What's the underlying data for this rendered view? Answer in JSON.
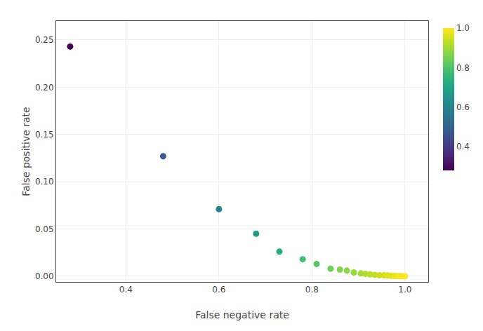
{
  "chart_data": {
    "type": "scatter",
    "xlabel": "False negative rate",
    "ylabel": "False positive rate",
    "x": [
      0.28,
      0.48,
      0.6,
      0.68,
      0.73,
      0.78,
      0.81,
      0.84,
      0.86,
      0.875,
      0.89,
      0.905,
      0.915,
      0.925,
      0.935,
      0.945,
      0.955,
      0.963,
      0.97,
      0.977,
      0.983,
      0.988,
      0.992,
      0.996,
      1.0
    ],
    "values": [
      0.243,
      0.127,
      0.071,
      0.045,
      0.026,
      0.018,
      0.013,
      0.008,
      0.007,
      0.006,
      0.004,
      0.003,
      0.0025,
      0.002,
      0.0015,
      0.001,
      0.001,
      0.0008,
      0.0005,
      0.0003,
      0.0002,
      0.0001,
      0.0001,
      0.0,
      0.0
    ],
    "color_values": [
      0.28,
      0.48,
      0.6,
      0.68,
      0.73,
      0.78,
      0.81,
      0.84,
      0.86,
      0.875,
      0.89,
      0.905,
      0.915,
      0.925,
      0.935,
      0.945,
      0.955,
      0.963,
      0.97,
      0.977,
      0.983,
      0.988,
      0.992,
      0.996,
      1.0
    ],
    "color_range": [
      0.28,
      1.0
    ],
    "color_ticks": [
      0.4,
      0.6,
      0.8,
      {
        "value": 1.0,
        "label": "1.0"
      }
    ],
    "xlim": [
      0.25,
      1.05
    ],
    "xticks": [
      0.4,
      0.6,
      0.8,
      {
        "value": 1.0,
        "label": "1.0"
      }
    ],
    "ylim": [
      -0.006,
      0.27
    ],
    "yticks": [
      {
        "value": 0.0,
        "label": "0.00"
      },
      0.05,
      {
        "value": 0.1,
        "label": "0.10"
      },
      0.15,
      {
        "value": 0.2,
        "label": "0.20"
      },
      0.25
    ],
    "grid": true
  }
}
